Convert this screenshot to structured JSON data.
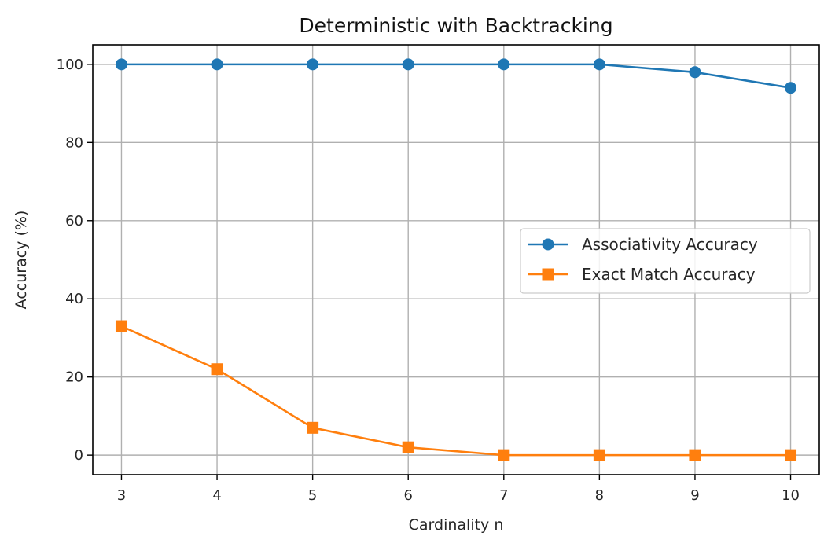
{
  "chart_data": {
    "type": "line",
    "title": "Deterministic with Backtracking",
    "xlabel": "Cardinality n",
    "ylabel": "Accuracy (%)",
    "x": [
      3,
      4,
      5,
      6,
      7,
      8,
      9,
      10
    ],
    "xlim": [
      2.7,
      10.3
    ],
    "ylim": [
      -5,
      105
    ],
    "xticks": [
      3,
      4,
      5,
      6,
      7,
      8,
      9,
      10
    ],
    "yticks": [
      0,
      20,
      40,
      60,
      80,
      100
    ],
    "grid": true,
    "legend_position": "center-right",
    "series": [
      {
        "name": "Associativity Accuracy",
        "marker": "circle",
        "color": "#1f77b4",
        "values": [
          100,
          100,
          100,
          100,
          100,
          100,
          98,
          94
        ]
      },
      {
        "name": "Exact Match Accuracy",
        "marker": "square",
        "color": "#ff7f0e",
        "values": [
          33,
          22,
          7,
          2,
          0,
          0,
          0,
          0
        ]
      }
    ]
  }
}
